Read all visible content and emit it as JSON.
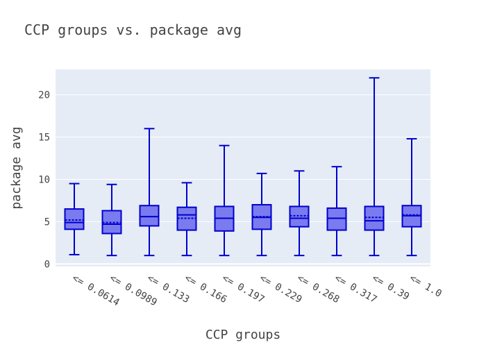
{
  "chart_data": {
    "type": "box",
    "title": "CCP groups vs. package avg",
    "xlabel": "CCP groups",
    "ylabel": "package avg",
    "ylim": [
      -0.3,
      23
    ],
    "yticks": [
      0,
      5,
      10,
      15,
      20
    ],
    "grid": true,
    "colors": {
      "plot_bg": "#e5ecf6",
      "box_fill": "#7b7bf0",
      "box_line": "#0000cc",
      "grid": "#ffffff"
    },
    "categories": [
      "<= 0.0614",
      "<= 0.0989",
      "<= 0.133",
      "<= 0.166",
      "<= 0.197",
      "<= 0.229",
      "<= 0.268",
      "<= 0.317",
      "<= 0.39",
      "<= 1.0"
    ],
    "boxes": [
      {
        "min": 1.1,
        "q1": 4.1,
        "median": 4.9,
        "mean": 5.2,
        "q3": 6.5,
        "max": 9.5
      },
      {
        "min": 1.0,
        "q1": 3.6,
        "median": 4.7,
        "mean": 4.9,
        "q3": 6.3,
        "max": 9.4
      },
      {
        "min": 1.0,
        "q1": 4.5,
        "median": 5.6,
        "mean": 5.6,
        "q3": 6.9,
        "max": 16.0
      },
      {
        "min": 1.0,
        "q1": 4.0,
        "median": 5.8,
        "mean": 5.4,
        "q3": 6.7,
        "max": 9.6
      },
      {
        "min": 1.0,
        "q1": 3.9,
        "median": 5.4,
        "mean": 5.4,
        "q3": 6.8,
        "max": 14.0
      },
      {
        "min": 1.0,
        "q1": 4.1,
        "median": 5.5,
        "mean": 5.6,
        "q3": 7.0,
        "max": 10.7
      },
      {
        "min": 1.0,
        "q1": 4.4,
        "median": 5.4,
        "mean": 5.7,
        "q3": 6.8,
        "max": 11.0
      },
      {
        "min": 1.0,
        "q1": 4.0,
        "median": 5.4,
        "mean": 5.4,
        "q3": 6.6,
        "max": 11.5
      },
      {
        "min": 1.0,
        "q1": 4.0,
        "median": 5.1,
        "mean": 5.5,
        "q3": 6.8,
        "max": 22.0
      },
      {
        "min": 1.0,
        "q1": 4.4,
        "median": 5.7,
        "mean": 5.8,
        "q3": 6.9,
        "max": 14.8
      }
    ]
  }
}
